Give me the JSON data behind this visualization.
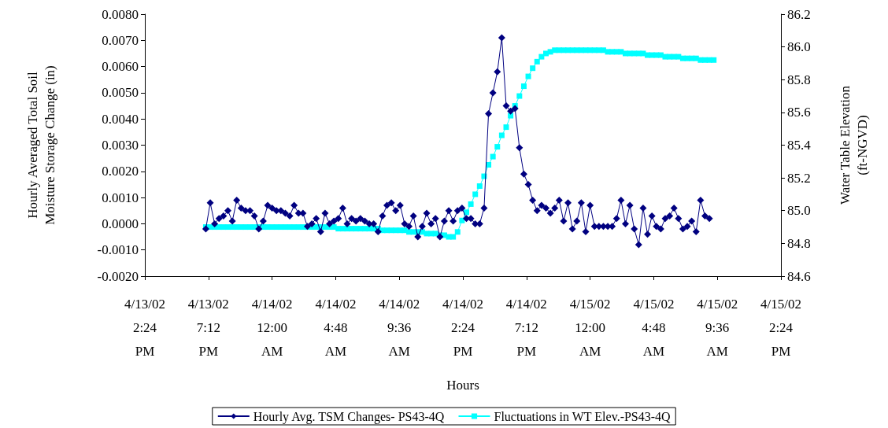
{
  "chart_data": {
    "type": "line",
    "xlabel": "Hours",
    "ylabel": "Hourly Averaged Total Soil\nMoisture Storage Change (in)",
    "y2label": "Water Table Elevation\n(ft-NGVD)",
    "legend": "bottom",
    "grid": false,
    "xlim": [
      "--04-13T14:24",
      "--04-15T14:24"
    ],
    "xticks": [
      {
        "value": "--04-13T14:24",
        "label": "4/13/02\n2:24\nPM"
      },
      {
        "value": "--04-13T19:12",
        "label": "4/13/02\n7:12\nPM"
      },
      {
        "value": "--04-14T00:00",
        "label": "4/14/02\n12:00\nAM"
      },
      {
        "value": "--04-14T04:48",
        "label": "4/14/02\n4:48\nAM"
      },
      {
        "value": "--04-14T09:36",
        "label": "4/14/02\n9:36\nAM"
      },
      {
        "value": "--04-14T14:24",
        "label": "4/14/02\n2:24\nPM"
      },
      {
        "value": "--04-14T19:12",
        "label": "4/14/02\n7:12\nPM"
      },
      {
        "value": "--04-15T00:00",
        "label": "4/15/02\n12:00\nAM"
      },
      {
        "value": "--04-15T04:48",
        "label": "4/15/02\n4:48\nAM"
      },
      {
        "value": "--04-15T09:36",
        "label": "4/15/02\n9:36\nAM"
      },
      {
        "value": "--04-15T14:24",
        "label": "4/15/02\n2:24\nPM"
      }
    ],
    "ylim": [
      -0.002,
      0.008
    ],
    "yticks": [
      {
        "value": -0.002,
        "label": "-0.0020"
      },
      {
        "value": -0.001,
        "label": "-0.0010"
      },
      {
        "value": 0,
        "label": "0.0000"
      },
      {
        "value": 0.001,
        "label": "0.0010"
      },
      {
        "value": 0.002,
        "label": "0.0020"
      },
      {
        "value": 0.003,
        "label": "0.0030"
      },
      {
        "value": 0.004,
        "label": "0.0040"
      },
      {
        "value": 0.005,
        "label": "0.0050"
      },
      {
        "value": 0.006,
        "label": "0.0060"
      },
      {
        "value": 0.007,
        "label": "0.0070"
      },
      {
        "value": 0.008,
        "label": "0.0080"
      }
    ],
    "y2lim": [
      84.6,
      86.2
    ],
    "y2ticks": [
      {
        "value": 84.6,
        "label": "84.6"
      },
      {
        "value": 84.8,
        "label": "84.8"
      },
      {
        "value": 85,
        "label": "85.0"
      },
      {
        "value": 85.2,
        "label": "85.2"
      },
      {
        "value": 85.4,
        "label": "85.4"
      },
      {
        "value": 85.6,
        "label": "85.6"
      },
      {
        "value": 85.8,
        "label": "85.8"
      },
      {
        "value": 86,
        "label": "86.0"
      },
      {
        "value": 86.2,
        "label": "86.2"
      }
    ],
    "x": [
      "--04-13T19:00",
      "--04-13T19:20",
      "--04-13T19:40",
      "--04-13T20:00",
      "--04-13T20:20",
      "--04-13T20:40",
      "--04-13T21:00",
      "--04-13T21:20",
      "--04-13T21:40",
      "--04-13T22:00",
      "--04-13T22:20",
      "--04-13T22:40",
      "--04-13T23:00",
      "--04-13T23:20",
      "--04-13T23:40",
      "--04-14T00:00",
      "--04-14T00:20",
      "--04-14T00:40",
      "--04-14T01:00",
      "--04-14T01:20",
      "--04-14T01:40",
      "--04-14T02:00",
      "--04-14T02:20",
      "--04-14T02:40",
      "--04-14T03:00",
      "--04-14T03:20",
      "--04-14T03:40",
      "--04-14T04:00",
      "--04-14T04:20",
      "--04-14T04:40",
      "--04-14T05:00",
      "--04-14T05:20",
      "--04-14T05:40",
      "--04-14T06:00",
      "--04-14T06:20",
      "--04-14T06:40",
      "--04-14T07:00",
      "--04-14T07:20",
      "--04-14T07:40",
      "--04-14T08:00",
      "--04-14T08:20",
      "--04-14T08:40",
      "--04-14T09:00",
      "--04-14T09:20",
      "--04-14T09:40",
      "--04-14T10:00",
      "--04-14T10:20",
      "--04-14T10:40",
      "--04-14T11:00",
      "--04-14T11:20",
      "--04-14T11:40",
      "--04-14T12:00",
      "--04-14T12:20",
      "--04-14T12:40",
      "--04-14T13:00",
      "--04-14T13:20",
      "--04-14T13:40",
      "--04-14T14:00",
      "--04-14T14:20",
      "--04-14T14:40",
      "--04-14T15:00",
      "--04-14T15:20",
      "--04-14T15:40",
      "--04-14T16:00",
      "--04-14T16:20",
      "--04-14T16:40",
      "--04-14T17:00",
      "--04-14T17:20",
      "--04-14T17:40",
      "--04-14T18:00",
      "--04-14T18:20",
      "--04-14T18:40",
      "--04-14T19:00",
      "--04-14T19:20",
      "--04-14T19:40",
      "--04-14T20:00",
      "--04-14T20:20",
      "--04-14T20:40",
      "--04-14T21:00",
      "--04-14T21:20",
      "--04-14T21:40",
      "--04-14T22:00",
      "--04-14T22:20",
      "--04-14T22:40",
      "--04-14T23:00",
      "--04-14T23:20",
      "--04-14T23:40",
      "--04-15T00:00",
      "--04-15T00:20",
      "--04-15T00:40",
      "--04-15T01:00",
      "--04-15T01:20",
      "--04-15T01:40",
      "--04-15T02:00",
      "--04-15T02:20",
      "--04-15T02:40",
      "--04-15T03:00",
      "--04-15T03:20",
      "--04-15T03:40",
      "--04-15T04:00",
      "--04-15T04:20",
      "--04-15T04:40",
      "--04-15T05:00",
      "--04-15T05:20",
      "--04-15T05:40",
      "--04-15T06:00",
      "--04-15T06:20",
      "--04-15T06:40",
      "--04-15T07:00",
      "--04-15T07:20",
      "--04-15T07:40",
      "--04-15T08:00",
      "--04-15T08:20",
      "--04-15T08:40",
      "--04-15T09:00",
      "--04-15T09:20"
    ],
    "series": [
      {
        "name": "Hourly Avg. TSM Changes- PS43-4Q",
        "color": "#000080",
        "marker": "diamond",
        "axis": "y",
        "x": [
          "--04-13T19:00",
          "--04-13T19:20",
          "--04-13T19:40",
          "--04-13T20:00",
          "--04-13T20:20",
          "--04-13T20:40",
          "--04-13T21:00",
          "--04-13T21:20",
          "--04-13T21:40",
          "--04-13T22:00",
          "--04-13T22:20",
          "--04-13T22:40",
          "--04-13T23:00",
          "--04-13T23:20",
          "--04-13T23:40",
          "--04-14T00:00",
          "--04-14T00:20",
          "--04-14T00:40",
          "--04-14T01:00",
          "--04-14T01:20",
          "--04-14T01:40",
          "--04-14T02:00",
          "--04-14T02:20",
          "--04-14T02:40",
          "--04-14T03:00",
          "--04-14T03:20",
          "--04-14T03:40",
          "--04-14T04:00",
          "--04-14T04:20",
          "--04-14T04:40",
          "--04-14T05:00",
          "--04-14T05:20",
          "--04-14T05:40",
          "--04-14T06:00",
          "--04-14T06:20",
          "--04-14T06:40",
          "--04-14T07:00",
          "--04-14T07:20",
          "--04-14T07:40",
          "--04-14T08:00",
          "--04-14T08:20",
          "--04-14T08:40",
          "--04-14T09:00",
          "--04-14T09:20",
          "--04-14T09:40",
          "--04-14T10:00",
          "--04-14T10:20",
          "--04-14T10:40",
          "--04-14T11:00",
          "--04-14T11:20",
          "--04-14T11:40",
          "--04-14T12:00",
          "--04-14T12:20",
          "--04-14T12:40",
          "--04-14T13:00",
          "--04-14T13:20",
          "--04-14T13:40",
          "--04-14T14:00",
          "--04-14T14:20",
          "--04-14T14:40",
          "--04-14T15:00",
          "--04-14T15:20",
          "--04-14T15:40",
          "--04-14T16:00",
          "--04-14T16:20",
          "--04-14T16:40",
          "--04-14T17:00",
          "--04-14T17:20",
          "--04-14T17:40",
          "--04-14T18:00",
          "--04-14T18:20",
          "--04-14T18:40",
          "--04-14T19:00",
          "--04-14T19:20",
          "--04-14T19:40",
          "--04-14T20:00",
          "--04-14T20:20",
          "--04-14T20:40",
          "--04-14T21:00",
          "--04-14T21:20",
          "--04-14T21:40",
          "--04-14T22:00",
          "--04-14T22:20",
          "--04-14T22:40",
          "--04-14T23:00",
          "--04-14T23:20",
          "--04-14T23:40",
          "--04-15T00:00",
          "--04-15T00:20",
          "--04-15T00:40",
          "--04-15T01:00",
          "--04-15T01:20",
          "--04-15T01:40",
          "--04-15T02:00",
          "--04-15T02:20",
          "--04-15T02:40",
          "--04-15T03:00",
          "--04-15T03:20",
          "--04-15T03:40",
          "--04-15T04:00",
          "--04-15T04:20",
          "--04-15T04:40",
          "--04-15T05:00",
          "--04-15T05:20",
          "--04-15T05:40",
          "--04-15T06:00",
          "--04-15T06:20",
          "--04-15T06:40",
          "--04-15T07:00",
          "--04-15T07:20",
          "--04-15T07:40",
          "--04-15T08:00",
          "--04-15T08:20",
          "--04-15T08:40",
          "--04-15T09:00"
        ],
        "values": [
          -0.0002,
          0.0008,
          0.0,
          0.0002,
          0.0003,
          0.0005,
          0.0001,
          0.0009,
          0.0006,
          0.0005,
          0.0005,
          0.0003,
          -0.0002,
          0.0001,
          0.0007,
          0.0006,
          0.0005,
          0.0005,
          0.0004,
          0.0003,
          0.0007,
          0.0004,
          0.0004,
          -0.0001,
          0.0,
          0.0002,
          -0.0003,
          0.0004,
          0.0,
          0.0001,
          0.0002,
          0.0006,
          0.0,
          0.0002,
          0.0001,
          0.0002,
          0.0001,
          0.0,
          0.0,
          -0.0003,
          0.0003,
          0.0007,
          0.0008,
          0.0005,
          0.0007,
          0.0,
          -0.0001,
          0.0003,
          -0.0005,
          -0.0001,
          0.0004,
          0.0,
          0.0002,
          -0.0005,
          0.0001,
          0.0005,
          0.0001,
          0.0005,
          0.0006,
          0.0002,
          0.0002,
          0.0,
          0.0,
          0.0006,
          0.0042,
          0.005,
          0.0058,
          0.0071,
          0.0045,
          0.0043,
          0.0044,
          0.0029,
          0.0019,
          0.0015,
          0.0009,
          0.0005,
          0.0007,
          0.0006,
          0.0004,
          0.0006,
          0.0009,
          0.0001,
          0.0008,
          -0.0002,
          0.0001,
          0.0008,
          -0.0003,
          0.0007,
          -0.0001,
          -0.0001,
          -0.0001,
          -0.0001,
          -0.0001,
          0.0002,
          0.0009,
          0.0,
          0.0007,
          -0.0002,
          -0.0008,
          0.0006,
          -0.0004,
          0.0003,
          -0.0001,
          -0.0002,
          0.0002,
          0.0003,
          0.0006,
          0.0002,
          -0.0002,
          -0.0001,
          0.0001,
          -0.0003,
          0.0009,
          0.0003,
          0.0002
        ]
      },
      {
        "name": "Fluctuations in WT Elev.-PS43-4Q",
        "color": "#00ffff",
        "marker": "square",
        "axis": "y2",
        "values": [
          84.9,
          84.9,
          84.9,
          84.9,
          84.9,
          84.9,
          84.9,
          84.9,
          84.9,
          84.9,
          84.9,
          84.9,
          84.9,
          84.9,
          84.9,
          84.9,
          84.9,
          84.9,
          84.9,
          84.9,
          84.9,
          84.9,
          84.9,
          84.9,
          84.9,
          84.9,
          84.9,
          84.9,
          84.9,
          84.9,
          84.89,
          84.89,
          84.89,
          84.89,
          84.89,
          84.89,
          84.89,
          84.89,
          84.89,
          84.89,
          84.88,
          84.88,
          84.88,
          84.88,
          84.88,
          84.88,
          84.87,
          84.87,
          84.87,
          84.87,
          84.86,
          84.86,
          84.86,
          84.85,
          84.85,
          84.84,
          84.84,
          84.87,
          84.94,
          84.99,
          85.04,
          85.1,
          85.15,
          85.21,
          85.28,
          85.33,
          85.39,
          85.46,
          85.51,
          85.58,
          85.64,
          85.7,
          85.76,
          85.82,
          85.87,
          85.91,
          85.94,
          85.96,
          85.97,
          85.98,
          85.98,
          85.98,
          85.98,
          85.98,
          85.98,
          85.98,
          85.98,
          85.98,
          85.98,
          85.98,
          85.98,
          85.97,
          85.97,
          85.97,
          85.97,
          85.96,
          85.96,
          85.96,
          85.96,
          85.96,
          85.95,
          85.95,
          85.95,
          85.95,
          85.94,
          85.94,
          85.94,
          85.94,
          85.93,
          85.93,
          85.93,
          85.93,
          85.92,
          85.92,
          85.92,
          85.92
        ]
      }
    ]
  }
}
